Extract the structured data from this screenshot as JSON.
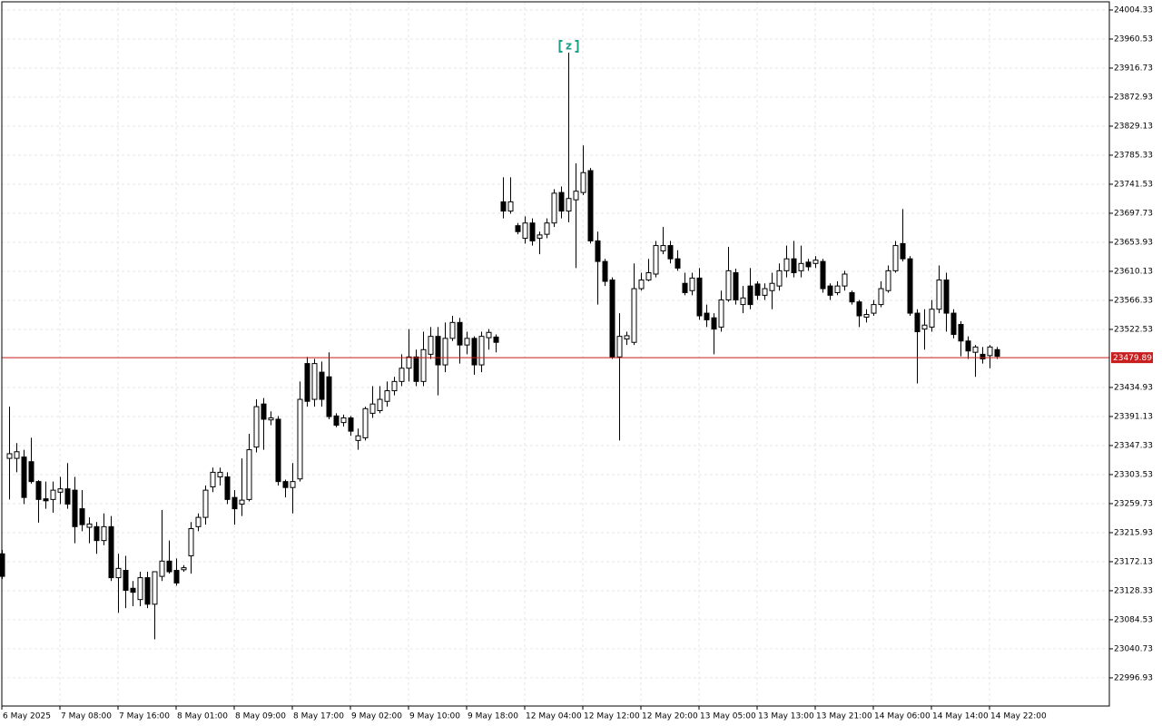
{
  "chart_data": {
    "type": "candlestick",
    "categories": [
      "6 May 2025",
      null,
      null,
      null,
      null,
      null,
      null,
      null,
      "7 May 08:00",
      null,
      null,
      null,
      null,
      null,
      null,
      null,
      "7 May 16:00",
      null,
      null,
      null,
      null,
      null,
      null,
      null,
      "8 May 01:00",
      null,
      null,
      null,
      null,
      null,
      null,
      null,
      "8 May 09:00",
      null,
      null,
      null,
      null,
      null,
      null,
      null,
      "8 May 17:00",
      null,
      null,
      null,
      null,
      null,
      null,
      null,
      "9 May 02:00",
      null,
      null,
      null,
      null,
      null,
      null,
      null,
      "9 May 10:00",
      null,
      null,
      null,
      null,
      null,
      null,
      null,
      "9 May 18:00",
      null,
      null,
      null,
      null,
      null,
      null,
      null,
      "12 May 04:00",
      null,
      null,
      null,
      null,
      null,
      null,
      null,
      "12 May 12:00",
      null,
      null,
      null,
      null,
      null,
      null,
      null,
      "12 May 20:00",
      null,
      null,
      null,
      null,
      null,
      null,
      null,
      "13 May 05:00",
      null,
      null,
      null,
      null,
      null,
      null,
      null,
      "13 May 13:00",
      null,
      null,
      null,
      null,
      null,
      null,
      null,
      "13 May 21:00",
      null,
      null,
      null,
      null,
      null,
      null,
      null,
      "14 May 06:00",
      null,
      null,
      null,
      null,
      null,
      null,
      null,
      "14 May 14:00",
      null,
      null,
      null,
      null,
      null,
      null,
      null,
      "14 May 22:00",
      null
    ],
    "open": [
      23184,
      23328,
      23328,
      23330,
      23323,
      23293,
      23267,
      23266,
      23277,
      23282,
      23280,
      23252,
      23224,
      23225,
      23204,
      23225,
      23148,
      23159,
      23132,
      23115,
      23148,
      23108,
      23150,
      23173,
      23159,
      23160,
      23181,
      23225,
      23239,
      23285,
      23300,
      23300,
      23269,
      23259,
      23266,
      23345,
      23410,
      23386,
      23387,
      23293,
      23284,
      23297,
      23471,
      23417,
      23458,
      23451,
      23392,
      23382,
      23389,
      23355,
      23359,
      23396,
      23400,
      23414,
      23430,
      23444,
      23464,
      23481,
      23444,
      23485,
      23512,
      23469,
      23509,
      23533,
      23499,
      23509,
      23469,
      23510,
      23511,
      23715,
      23701,
      23679,
      23660,
      23683,
      23660,
      23666,
      23683,
      23729,
      23701,
      23718,
      23729,
      23762,
      23656,
      23625,
      23597,
      23481,
      23508,
      23503,
      23584,
      23597,
      23606,
      23641,
      23649,
      23629,
      23592,
      23581,
      23600,
      23547,
      23540,
      23526,
      23567,
      23608,
      23560,
      23588,
      23591,
      23574,
      23581,
      23588,
      23611,
      23629,
      23611,
      23624,
      23622,
      23625,
      23588,
      23578,
      23588,
      23578,
      23564,
      23541,
      23547,
      23560,
      23581,
      23611,
      23652,
      23629,
      23547,
      23523,
      23526,
      23553,
      23597,
      23547,
      23530,
      23505,
      23488,
      23485,
      23483,
      23492
    ],
    "high": [
      23190,
      23406,
      23351,
      23341,
      23359,
      23295,
      23293,
      23293,
      23300,
      23321,
      23300,
      23280,
      23239,
      23232,
      23245,
      23241,
      23184,
      23181,
      23143,
      23157,
      23157,
      23157,
      23250,
      23204,
      23177,
      23167,
      23232,
      23245,
      23287,
      23314,
      23314,
      23307,
      23280,
      23328,
      23365,
      23417,
      23419,
      23399,
      23392,
      23296,
      23321,
      23444,
      23481,
      23478,
      23474,
      23488,
      23396,
      23394,
      23392,
      23373,
      23406,
      23437,
      23437,
      23444,
      23451,
      23485,
      23523,
      23492,
      23519,
      23526,
      23526,
      23533,
      23543,
      23540,
      23519,
      23512,
      23519,
      23523,
      23515,
      23752,
      23752,
      23683,
      23693,
      23690,
      23670,
      23690,
      23734,
      23738,
      23940,
      23773,
      23800,
      23766,
      23670,
      23629,
      23601,
      23547,
      23519,
      23622,
      23608,
      23629,
      23656,
      23677,
      23656,
      23642,
      23608,
      23608,
      23615,
      23560,
      23547,
      23581,
      23647,
      23614,
      23588,
      23615,
      23595,
      23592,
      23608,
      23622,
      23649,
      23656,
      23649,
      23629,
      23633,
      23629,
      23592,
      23595,
      23611,
      23581,
      23567,
      23553,
      23567,
      23595,
      23619,
      23656,
      23704,
      23633,
      23553,
      23553,
      23567,
      23619,
      23608,
      23553,
      23535,
      23512,
      23499,
      23496,
      23499,
      23496
    ],
    "low": [
      23146,
      23266,
      23307,
      23259,
      23290,
      23231,
      23252,
      23246,
      23259,
      23252,
      23200,
      23218,
      23200,
      23184,
      23197,
      23143,
      23095,
      23102,
      23105,
      23105,
      23102,
      23055,
      23143,
      23154,
      23136,
      23157,
      23154,
      23218,
      23228,
      23277,
      23287,
      23259,
      23228,
      23241,
      23263,
      23337,
      23341,
      23378,
      23287,
      23269,
      23245,
      23293,
      23406,
      23406,
      23406,
      23387,
      23375,
      23376,
      23362,
      23341,
      23355,
      23389,
      23396,
      23406,
      23423,
      23437,
      23444,
      23437,
      23437,
      23478,
      23423,
      23458,
      23505,
      23471,
      23485,
      23454,
      23458,
      23492,
      23488,
      23690,
      23697,
      23666,
      23652,
      23649,
      23636,
      23660,
      23677,
      23690,
      23684,
      23615,
      23725,
      23652,
      23560,
      23588,
      23478,
      23355,
      23499,
      23499,
      23581,
      23595,
      23601,
      23636,
      23622,
      23611,
      23574,
      23574,
      23537,
      23526,
      23485,
      23519,
      23564,
      23560,
      23547,
      23553,
      23567,
      23567,
      23553,
      23581,
      23601,
      23601,
      23601,
      23611,
      23615,
      23578,
      23567,
      23574,
      23581,
      23560,
      23526,
      23533,
      23543,
      23556,
      23578,
      23608,
      23625,
      23543,
      23441,
      23492,
      23519,
      23547,
      23519,
      23509,
      23482,
      23478,
      23451,
      23471,
      23464,
      23478
    ],
    "close": [
      23150,
      23335,
      23338,
      23269,
      23293,
      23266,
      23264,
      23280,
      23282,
      23259,
      23225,
      23228,
      23229,
      23204,
      23225,
      23148,
      23162,
      23129,
      23126,
      23148,
      23108,
      23157,
      23173,
      23157,
      23140,
      23163,
      23222,
      23239,
      23280,
      23307,
      23307,
      23266,
      23252,
      23265,
      23341,
      23406,
      23387,
      23389,
      23293,
      23284,
      23293,
      23417,
      23414,
      23471,
      23417,
      23391,
      23378,
      23389,
      23369,
      23362,
      23403,
      23410,
      23417,
      23430,
      23444,
      23464,
      23481,
      23444,
      23492,
      23512,
      23469,
      23509,
      23533,
      23499,
      23509,
      23469,
      23512,
      23518,
      23503,
      23701,
      23715,
      23670,
      23683,
      23656,
      23665,
      23683,
      23728,
      23701,
      23720,
      23731,
      23759,
      23656,
      23625,
      23595,
      23481,
      23512,
      23513,
      23584,
      23597,
      23608,
      23649,
      23649,
      23629,
      23615,
      23578,
      23600,
      23543,
      23537,
      23523,
      23567,
      23611,
      23567,
      23570,
      23560,
      23574,
      23584,
      23592,
      23611,
      23629,
      23608,
      23622,
      23617,
      23627,
      23584,
      23574,
      23588,
      23606,
      23564,
      23543,
      23545,
      23560,
      23584,
      23611,
      23649,
      23629,
      23547,
      23519,
      23529,
      23553,
      23597,
      23547,
      23515,
      23505,
      23490,
      23496,
      23478,
      23496,
      23482
    ],
    "ylim": [
      22954.4,
      24016.65
    ],
    "yticks": [
      24004.33,
      23960.53,
      23916.73,
      23872.93,
      23829.13,
      23785.33,
      23741.53,
      23697.73,
      23653.93,
      23610.13,
      23566.33,
      23522.53,
      23434.93,
      23391.13,
      23347.33,
      23303.53,
      23259.73,
      23215.93,
      23172.13,
      23128.33,
      23084.53,
      23040.73,
      22996.93
    ],
    "grid": true,
    "price_line": 23479.89,
    "annotations": [
      {
        "text": "z",
        "candle": 78
      }
    ],
    "colors": {
      "up": "#ffffff",
      "down": "#000000",
      "price_line": "#c81e1e",
      "annotation": "#1f9e89"
    }
  }
}
